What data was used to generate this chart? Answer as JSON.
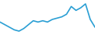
{
  "x": [
    0,
    1,
    2,
    3,
    4,
    5,
    6,
    7,
    8,
    9,
    10,
    11,
    12,
    13,
    14,
    15,
    16,
    17,
    18,
    19,
    20
  ],
  "y": [
    76,
    74,
    72,
    70,
    69,
    71,
    74,
    77,
    76,
    77,
    76,
    78,
    79,
    80,
    82,
    88,
    85,
    87,
    90,
    78,
    72
  ],
  "line_color": "#2b9fd4",
  "background_color": "#ffffff",
  "linewidth": 1.2,
  "ylim_low": 66,
  "ylim_high": 93
}
